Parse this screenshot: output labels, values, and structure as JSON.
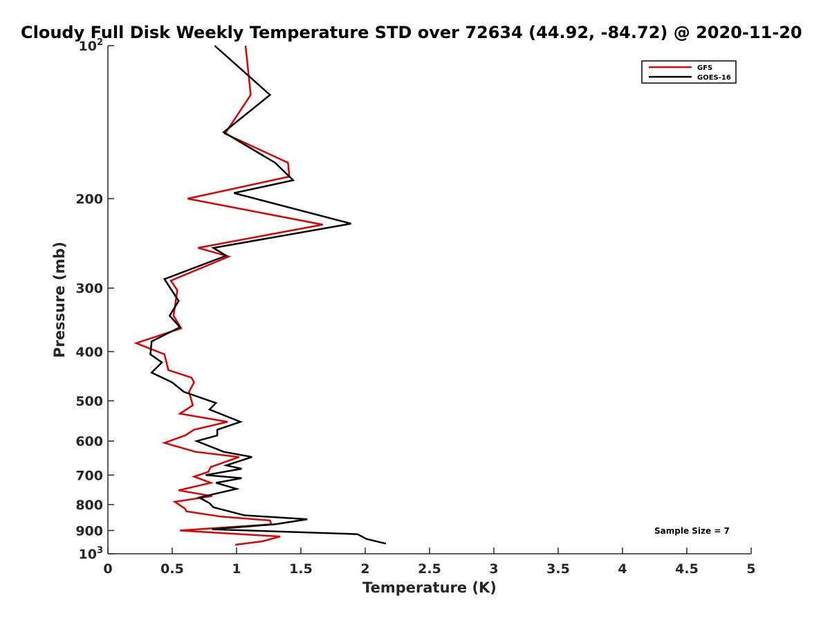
{
  "chart_data": {
    "type": "line",
    "title": "Cloudy Full Disk Weekly Temperature STD over 72634 (44.92, -84.72) @ 2020-11-20",
    "xlabel": "Temperature (K)",
    "ylabel": "Pressure (mb)",
    "xlim": [
      0,
      5
    ],
    "ylim": [
      100,
      1000
    ],
    "y_scale": "log",
    "y_reversed": true,
    "grid": false,
    "legend_position": "top-right",
    "x_ticks": [
      0,
      0.5,
      1,
      1.5,
      2,
      2.5,
      3,
      3.5,
      4,
      4.5,
      5
    ],
    "x_tick_labels": [
      "0",
      "0.5",
      "1",
      "1.5",
      "2",
      "2.5",
      "3",
      "3.5",
      "4",
      "4.5",
      "5"
    ],
    "y_ticks": [
      100,
      200,
      300,
      400,
      500,
      600,
      700,
      800,
      900,
      1000
    ],
    "y_tick_labels": [
      {
        "base": "10",
        "exp": "2"
      },
      {
        "base": "200",
        "exp": ""
      },
      {
        "base": "300",
        "exp": ""
      },
      {
        "base": "400",
        "exp": ""
      },
      {
        "base": "500",
        "exp": ""
      },
      {
        "base": "600",
        "exp": ""
      },
      {
        "base": "700",
        "exp": ""
      },
      {
        "base": "800",
        "exp": ""
      },
      {
        "base": "900",
        "exp": ""
      },
      {
        "base": "10",
        "exp": "3"
      }
    ],
    "annotation": "Sample Size = 7",
    "series": [
      {
        "name": "GFS",
        "color": "#e00000",
        "points": [
          [
            1.07,
            100
          ],
          [
            1.11,
            125
          ],
          [
            0.91,
            149
          ],
          [
            1.4,
            170
          ],
          [
            1.41,
            181
          ],
          [
            0.62,
            200
          ],
          [
            1.67,
            225
          ],
          [
            0.7,
            250
          ],
          [
            0.94,
            260
          ],
          [
            0.49,
            290
          ],
          [
            0.54,
            303
          ],
          [
            0.51,
            340
          ],
          [
            0.57,
            360
          ],
          [
            0.22,
            385
          ],
          [
            0.44,
            405
          ],
          [
            0.47,
            435
          ],
          [
            0.65,
            450
          ],
          [
            0.67,
            460
          ],
          [
            0.63,
            480
          ],
          [
            0.66,
            510
          ],
          [
            0.56,
            530
          ],
          [
            0.93,
            550
          ],
          [
            0.67,
            570
          ],
          [
            0.6,
            585
          ],
          [
            0.44,
            605
          ],
          [
            0.68,
            630
          ],
          [
            1.02,
            645
          ],
          [
            0.8,
            675
          ],
          [
            0.78,
            690
          ],
          [
            0.67,
            705
          ],
          [
            0.8,
            725
          ],
          [
            0.55,
            750
          ],
          [
            0.81,
            770
          ],
          [
            0.52,
            790
          ],
          [
            0.6,
            815
          ],
          [
            0.61,
            825
          ],
          [
            0.88,
            845
          ],
          [
            1.26,
            860
          ],
          [
            1.27,
            875
          ],
          [
            0.56,
            900
          ],
          [
            1.34,
            925
          ],
          [
            1.2,
            945
          ],
          [
            0.99,
            960
          ]
        ]
      },
      {
        "name": "GOES-16",
        "color": "#000000",
        "points": [
          [
            0.83,
            100
          ],
          [
            1.26,
            125
          ],
          [
            0.9,
            148
          ],
          [
            1.3,
            170
          ],
          [
            1.44,
            184
          ],
          [
            0.98,
            195
          ],
          [
            1.89,
            224
          ],
          [
            0.82,
            250
          ],
          [
            0.92,
            259
          ],
          [
            0.44,
            288
          ],
          [
            0.55,
            318
          ],
          [
            0.48,
            340
          ],
          [
            0.56,
            358
          ],
          [
            0.34,
            382
          ],
          [
            0.33,
            405
          ],
          [
            0.42,
            420
          ],
          [
            0.34,
            440
          ],
          [
            0.5,
            460
          ],
          [
            0.59,
            480
          ],
          [
            0.84,
            505
          ],
          [
            0.79,
            520
          ],
          [
            1.03,
            550
          ],
          [
            0.85,
            570
          ],
          [
            0.85,
            585
          ],
          [
            0.69,
            600
          ],
          [
            0.9,
            630
          ],
          [
            1.12,
            645
          ],
          [
            0.92,
            670
          ],
          [
            1.04,
            680
          ],
          [
            0.76,
            700
          ],
          [
            1.04,
            710
          ],
          [
            0.84,
            725
          ],
          [
            1.0,
            745
          ],
          [
            0.71,
            775
          ],
          [
            0.79,
            795
          ],
          [
            0.82,
            810
          ],
          [
            1.06,
            840
          ],
          [
            1.55,
            855
          ],
          [
            1.3,
            875
          ],
          [
            0.81,
            895
          ],
          [
            1.94,
            915
          ],
          [
            2.01,
            935
          ],
          [
            2.16,
            955
          ]
        ]
      }
    ]
  }
}
